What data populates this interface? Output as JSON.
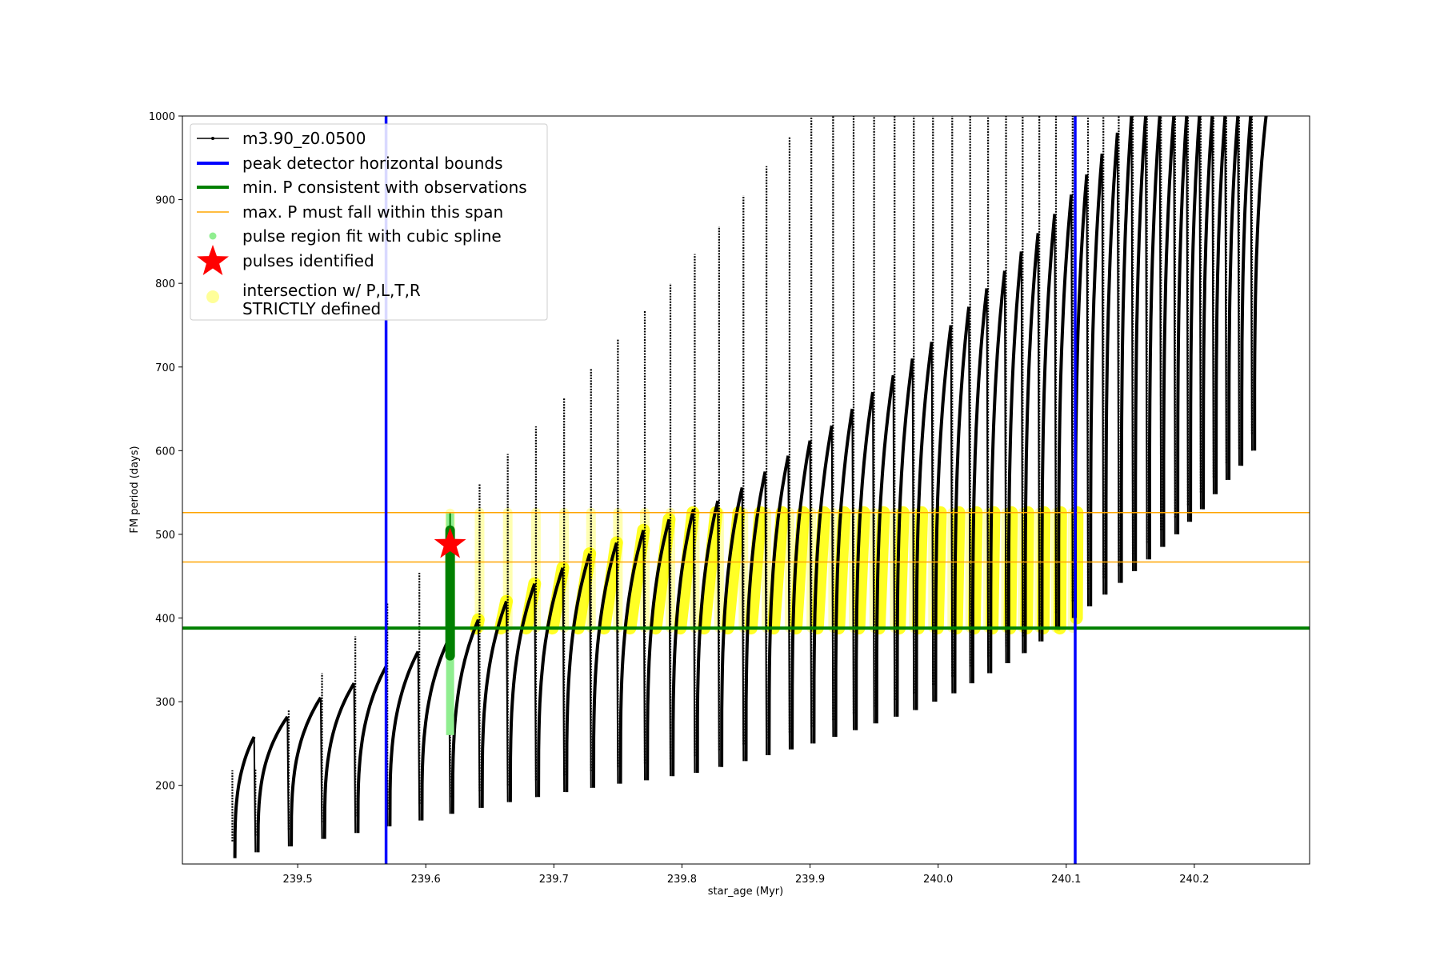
{
  "chart_data": {
    "type": "scatter",
    "xlabel": "star_age (Myr)",
    "ylabel": "FM period (days)",
    "xlim": [
      239.41,
      240.29
    ],
    "ylim": [
      106,
      1000
    ],
    "xticks": [
      239.5,
      239.6,
      239.7,
      239.8,
      239.9,
      240.0,
      240.1,
      240.2
    ],
    "xtick_labels": [
      "239.5",
      "239.6",
      "239.7",
      "239.8",
      "239.9",
      "240.0",
      "240.1",
      "240.2"
    ],
    "yticks": [
      200,
      300,
      400,
      500,
      600,
      700,
      800,
      900,
      1000
    ],
    "ytick_labels": [
      "200",
      "300",
      "400",
      "500",
      "600",
      "700",
      "800",
      "900",
      "1000"
    ],
    "grid": false,
    "legend_position": "top-left",
    "legend": [
      {
        "label": "m3.90_z0.0500",
        "kind": "line-marker",
        "color": "#000000"
      },
      {
        "label": "peak detector horizontal bounds",
        "kind": "line",
        "color": "#0000ff"
      },
      {
        "label": "min. P consistent with observations",
        "kind": "line",
        "color": "#008000"
      },
      {
        "label": "max. P must fall within this span",
        "kind": "thin-line",
        "color": "#ffa500"
      },
      {
        "label": "pulse region fit with cubic spline",
        "kind": "dot",
        "color": "#90ee90"
      },
      {
        "label": "pulses identified",
        "kind": "star",
        "color": "#ff0000"
      },
      {
        "label": "intersection w/ P,L,T,R\nSTRICTLY defined",
        "kind": "circle",
        "color": "#ffff99"
      }
    ],
    "vertical_lines": [
      239.569,
      240.107
    ],
    "min_period_line": 388,
    "max_period_span": [
      467,
      526
    ],
    "pulses_identified": [
      {
        "x": 239.619,
        "y": 488
      }
    ],
    "spline_region": {
      "x": 239.619,
      "y_range": [
        260,
        525
      ]
    },
    "series": [
      {
        "name": "m3.90_z0.0500",
        "description_points": "pulse cycles: onset age, base period, peak period",
        "cycles": [
          {
            "start": 239.449,
            "base": 113,
            "peak": 258,
            "spike": 218
          },
          {
            "start": 239.467,
            "base": 120,
            "peak": 282,
            "spike": 220
          },
          {
            "start": 239.493,
            "base": 127,
            "peak": 305,
            "spike": 290
          },
          {
            "start": 239.519,
            "base": 136,
            "peak": 322,
            "spike": 334
          },
          {
            "start": 239.545,
            "base": 143,
            "peak": 342,
            "spike": 378
          },
          {
            "start": 239.57,
            "base": 151,
            "peak": 360,
            "spike": 418
          },
          {
            "start": 239.595,
            "base": 158,
            "peak": 375,
            "spike": 454
          },
          {
            "start": 239.619,
            "base": 166,
            "peak": 398,
            "spike": 525
          },
          {
            "start": 239.642,
            "base": 173,
            "peak": 420,
            "spike": 560
          },
          {
            "start": 239.664,
            "base": 180,
            "peak": 441,
            "spike": 596
          },
          {
            "start": 239.686,
            "base": 186,
            "peak": 460,
            "spike": 629
          },
          {
            "start": 239.708,
            "base": 192,
            "peak": 477,
            "spike": 663
          },
          {
            "start": 239.729,
            "base": 197,
            "peak": 490,
            "spike": 698
          },
          {
            "start": 239.75,
            "base": 202,
            "peak": 505,
            "spike": 733
          },
          {
            "start": 239.771,
            "base": 206,
            "peak": 518,
            "spike": 768
          },
          {
            "start": 239.791,
            "base": 211,
            "peak": 530,
            "spike": 800
          },
          {
            "start": 239.81,
            "base": 215,
            "peak": 540,
            "spike": 835
          },
          {
            "start": 239.829,
            "base": 222,
            "peak": 556,
            "spike": 868
          },
          {
            "start": 239.848,
            "base": 229,
            "peak": 575,
            "spike": 905
          },
          {
            "start": 239.866,
            "base": 236,
            "peak": 594,
            "spike": 940
          },
          {
            "start": 239.884,
            "base": 243,
            "peak": 612,
            "spike": 975
          },
          {
            "start": 239.901,
            "base": 250,
            "peak": 630,
            "spike": 1000
          },
          {
            "start": 239.918,
            "base": 258,
            "peak": 650,
            "spike": 1000
          },
          {
            "start": 239.934,
            "base": 266,
            "peak": 670,
            "spike": 1000
          },
          {
            "start": 239.95,
            "base": 274,
            "peak": 690,
            "spike": 1000
          },
          {
            "start": 239.966,
            "base": 282,
            "peak": 710,
            "spike": 1000
          },
          {
            "start": 239.981,
            "base": 290,
            "peak": 730,
            "spike": 1000
          },
          {
            "start": 239.996,
            "base": 300,
            "peak": 750,
            "spike": 1000
          },
          {
            "start": 240.011,
            "base": 310,
            "peak": 772,
            "spike": 1000
          },
          {
            "start": 240.025,
            "base": 322,
            "peak": 794,
            "spike": 1000
          },
          {
            "start": 240.039,
            "base": 334,
            "peak": 815,
            "spike": 1000
          },
          {
            "start": 240.053,
            "base": 346,
            "peak": 838,
            "spike": 1000
          },
          {
            "start": 240.066,
            "base": 358,
            "peak": 860,
            "spike": 1000
          },
          {
            "start": 240.079,
            "base": 372,
            "peak": 883,
            "spike": 1000
          },
          {
            "start": 240.092,
            "base": 386,
            "peak": 906,
            "spike": 1000
          },
          {
            "start": 240.105,
            "base": 400,
            "peak": 930,
            "spike": 1000
          },
          {
            "start": 240.117,
            "base": 414,
            "peak": 955,
            "spike": 1000
          },
          {
            "start": 240.129,
            "base": 428,
            "peak": 980,
            "spike": 1000
          },
          {
            "start": 240.141,
            "base": 442,
            "peak": 1000,
            "spike": 1000
          },
          {
            "start": 240.152,
            "base": 456,
            "peak": 1000,
            "spike": 1000
          },
          {
            "start": 240.163,
            "base": 470,
            "peak": 1000,
            "spike": 1000
          },
          {
            "start": 240.174,
            "base": 485,
            "peak": 1000,
            "spike": 1000
          },
          {
            "start": 240.185,
            "base": 500,
            "peak": 1000,
            "spike": 1000
          },
          {
            "start": 240.195,
            "base": 515,
            "peak": 1000,
            "spike": 1000
          },
          {
            "start": 240.205,
            "base": 530,
            "peak": 1000,
            "spike": 1000
          },
          {
            "start": 240.215,
            "base": 548,
            "peak": 1000,
            "spike": 1000
          },
          {
            "start": 240.225,
            "base": 565,
            "peak": 1000,
            "spike": 1000
          },
          {
            "start": 240.235,
            "base": 582,
            "peak": 1000,
            "spike": 1000
          },
          {
            "start": 240.245,
            "base": 600,
            "peak": 1000,
            "spike": 1000
          }
        ]
      }
    ],
    "colors": {
      "track": "#000000",
      "bounds": "#0000ff",
      "min_period": "#008000",
      "max_span": "#ffa500",
      "spline": "#90ee90",
      "star": "#ff0000",
      "intersection": "#ffff00"
    }
  }
}
